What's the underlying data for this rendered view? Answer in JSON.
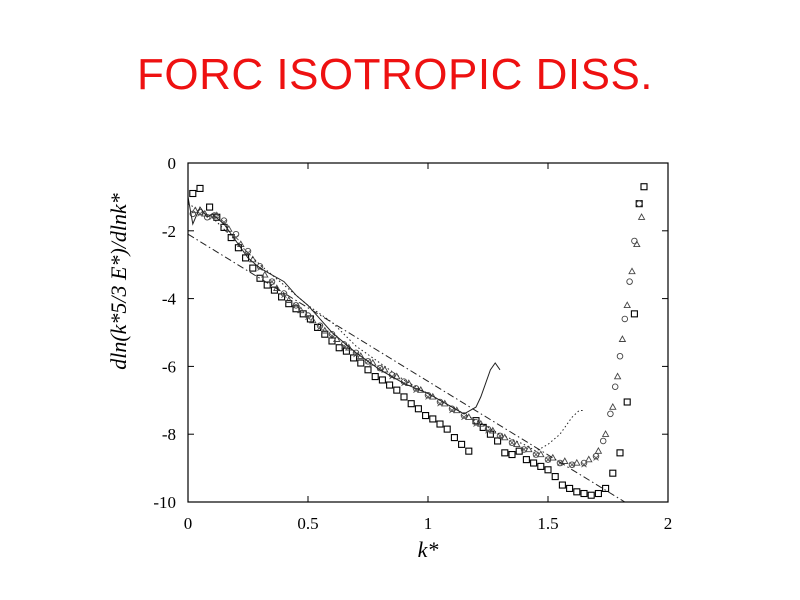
{
  "slide": {
    "title": "FORC ISOTROPIC DISS.",
    "title_color": "#ee1111"
  },
  "chart_data": {
    "type": "scatter",
    "title": "",
    "xlabel": "k*",
    "ylabel": "dln(k*5/3 E*)/dlnk*",
    "xlim": [
      0,
      2
    ],
    "ylim": [
      -10,
      0
    ],
    "grid": false,
    "xticks": [
      "0",
      "0.5",
      "1",
      "1.5",
      "2"
    ],
    "yticks": [
      "0",
      "-2",
      "-4",
      "-6",
      "-8",
      "-10"
    ],
    "series": [
      {
        "marker": "square",
        "x": [
          0.02,
          0.05,
          0.09,
          0.12,
          0.15,
          0.18,
          0.21,
          0.24,
          0.27,
          0.3,
          0.33,
          0.36,
          0.39,
          0.42,
          0.45,
          0.48,
          0.51,
          0.54,
          0.57,
          0.6,
          0.63,
          0.66,
          0.69,
          0.72,
          0.75,
          0.78,
          0.81,
          0.84,
          0.87,
          0.9,
          0.93,
          0.96,
          0.99,
          1.02,
          1.05,
          1.08,
          1.11,
          1.14,
          1.17,
          1.2,
          1.23,
          1.26,
          1.29,
          1.32,
          1.35,
          1.38,
          1.41,
          1.44,
          1.47,
          1.5,
          1.53,
          1.56,
          1.59,
          1.62,
          1.65,
          1.68,
          1.71,
          1.74,
          1.77,
          1.8,
          1.83,
          1.86,
          1.88,
          1.9
        ],
        "y": [
          -0.9,
          -0.75,
          -1.3,
          -1.6,
          -1.9,
          -2.2,
          -2.5,
          -2.8,
          -3.1,
          -3.4,
          -3.6,
          -3.75,
          -3.95,
          -4.15,
          -4.3,
          -4.45,
          -4.6,
          -4.85,
          -5.05,
          -5.25,
          -5.45,
          -5.55,
          -5.75,
          -5.9,
          -6.1,
          -6.3,
          -6.4,
          -6.55,
          -6.7,
          -6.9,
          -7.1,
          -7.25,
          -7.45,
          -7.55,
          -7.7,
          -7.85,
          -8.1,
          -8.3,
          -8.5,
          -7.6,
          -7.8,
          -8.0,
          -8.2,
          -8.55,
          -8.6,
          -8.5,
          -8.75,
          -8.85,
          -8.95,
          -9.05,
          -9.25,
          -9.5,
          -9.6,
          -9.7,
          -9.75,
          -9.8,
          -9.75,
          -9.6,
          -9.15,
          -8.55,
          -7.05,
          -4.45,
          -1.2,
          -0.7
        ]
      },
      {
        "marker": "circle",
        "x": [
          0.02,
          0.05,
          0.08,
          0.11,
          0.15,
          0.2,
          0.25,
          0.3,
          0.35,
          0.4,
          0.45,
          0.5,
          0.55,
          0.6,
          0.65,
          0.7,
          0.75,
          0.8,
          0.85,
          0.9,
          0.95,
          1.0,
          1.05,
          1.1,
          1.15,
          1.2,
          1.25,
          1.3,
          1.35,
          1.4,
          1.45,
          1.5,
          1.55,
          1.6,
          1.65,
          1.7,
          1.73,
          1.76,
          1.78,
          1.8,
          1.82,
          1.84,
          1.86,
          1.88
        ],
        "y": [
          -1.5,
          -1.45,
          -1.6,
          -1.55,
          -1.7,
          -2.1,
          -2.6,
          -3.05,
          -3.5,
          -3.85,
          -4.2,
          -4.5,
          -4.8,
          -5.05,
          -5.35,
          -5.6,
          -5.85,
          -6.05,
          -6.25,
          -6.45,
          -6.65,
          -6.85,
          -7.05,
          -7.25,
          -7.45,
          -7.65,
          -7.85,
          -8.05,
          -8.25,
          -8.45,
          -8.6,
          -8.75,
          -8.85,
          -8.9,
          -8.85,
          -8.65,
          -8.2,
          -7.4,
          -6.6,
          -5.7,
          -4.6,
          -3.5,
          -2.3,
          -1.2
        ]
      },
      {
        "marker": "triangle",
        "x": [
          0.03,
          0.07,
          0.12,
          0.17,
          0.22,
          0.27,
          0.32,
          0.37,
          0.42,
          0.47,
          0.52,
          0.57,
          0.62,
          0.67,
          0.72,
          0.77,
          0.82,
          0.87,
          0.92,
          0.97,
          1.02,
          1.07,
          1.12,
          1.17,
          1.22,
          1.27,
          1.32,
          1.37,
          1.42,
          1.47,
          1.52,
          1.57,
          1.62,
          1.67,
          1.71,
          1.74,
          1.77,
          1.79,
          1.81,
          1.83,
          1.85,
          1.87,
          1.89
        ],
        "y": [
          -1.4,
          -1.5,
          -1.55,
          -1.95,
          -2.4,
          -2.85,
          -3.3,
          -3.7,
          -4.05,
          -4.35,
          -4.65,
          -4.95,
          -5.2,
          -5.45,
          -5.7,
          -5.9,
          -6.1,
          -6.3,
          -6.5,
          -6.7,
          -6.9,
          -7.1,
          -7.3,
          -7.5,
          -7.7,
          -7.9,
          -8.1,
          -8.3,
          -8.45,
          -8.6,
          -8.7,
          -8.8,
          -8.85,
          -8.75,
          -8.5,
          -8.0,
          -7.2,
          -6.3,
          -5.2,
          -4.2,
          -3.2,
          -2.4,
          -1.6
        ]
      },
      {
        "marker": "x",
        "x": [
          0.05,
          0.1,
          0.15,
          0.2,
          0.25,
          0.3,
          0.35,
          0.4,
          0.45,
          0.5,
          0.55,
          0.6,
          0.65,
          0.7,
          0.75,
          0.8,
          0.85,
          0.9,
          0.95,
          1.0,
          1.05,
          1.1,
          1.15,
          1.2,
          1.25,
          1.3,
          1.35,
          1.4,
          1.45,
          1.5,
          1.55,
          1.6,
          1.65,
          1.7
        ],
        "y": [
          -1.5,
          -1.6,
          -1.75,
          -2.2,
          -2.65,
          -3.1,
          -3.5,
          -3.9,
          -4.2,
          -4.55,
          -4.85,
          -5.1,
          -5.4,
          -5.65,
          -5.85,
          -6.05,
          -6.3,
          -6.5,
          -6.7,
          -6.9,
          -7.1,
          -7.3,
          -7.5,
          -7.7,
          -7.9,
          -8.05,
          -8.25,
          -8.45,
          -8.6,
          -8.75,
          -8.85,
          -8.9,
          -8.9,
          -8.7
        ]
      },
      {
        "line_style": "solid",
        "x": [
          0.0,
          0.02,
          0.05,
          0.08,
          0.1,
          0.15,
          0.2,
          0.25,
          0.3,
          0.35,
          0.4,
          0.45,
          0.5,
          0.55,
          0.6,
          0.7,
          0.8,
          0.9,
          1.0,
          1.1,
          1.15,
          1.2,
          1.22,
          1.24,
          1.26,
          1.28,
          1.3
        ],
        "y": [
          -1.0,
          -1.8,
          -1.3,
          -1.6,
          -1.5,
          -1.8,
          -2.3,
          -2.8,
          -3.1,
          -3.3,
          -3.5,
          -3.9,
          -4.2,
          -4.6,
          -5.0,
          -5.6,
          -6.1,
          -6.5,
          -6.8,
          -7.2,
          -7.4,
          -7.2,
          -6.9,
          -6.5,
          -6.1,
          -5.9,
          -6.1
        ]
      },
      {
        "line_style": "dotted",
        "x": [
          0.0,
          0.05,
          0.1,
          0.2,
          0.3,
          0.4,
          0.5,
          0.6,
          0.7,
          0.8,
          0.9,
          1.0,
          1.1,
          1.2,
          1.3,
          1.4,
          1.45,
          1.5,
          1.55,
          1.58,
          1.6,
          1.63,
          1.65
        ],
        "y": [
          -1.2,
          -1.4,
          -1.6,
          -2.3,
          -3.0,
          -3.6,
          -4.2,
          -4.7,
          -5.4,
          -5.9,
          -6.4,
          -6.8,
          -7.2,
          -7.6,
          -8.0,
          -8.3,
          -8.5,
          -8.3,
          -8.0,
          -7.7,
          -7.5,
          -7.3,
          -7.3
        ]
      },
      {
        "line_style": "dash-dot",
        "x": [
          0.0,
          1.82
        ],
        "y": [
          -2.1,
          -10.0
        ]
      }
    ]
  }
}
